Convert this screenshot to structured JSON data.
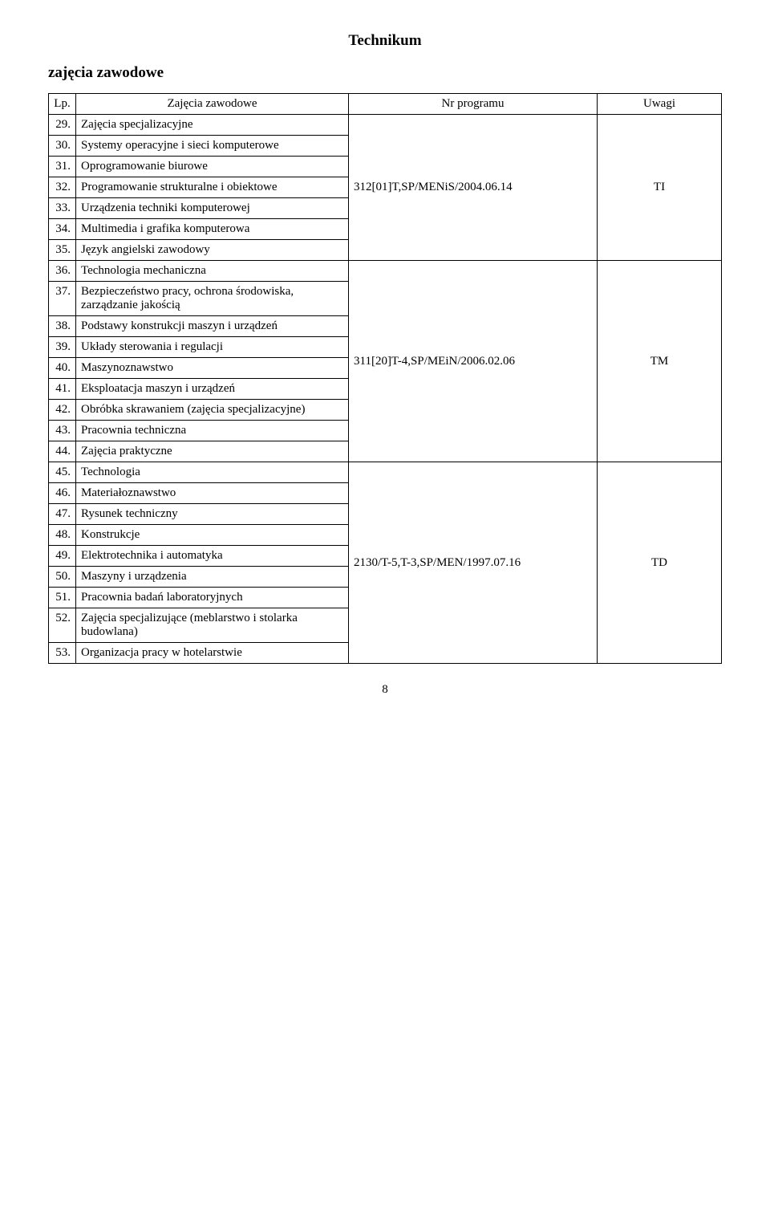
{
  "title": "Technikum",
  "subtitle": "zajęcia zawodowe",
  "headers": {
    "lp": "Lp.",
    "name": "Zajęcia zawodowe",
    "program": "Nr programu",
    "uwagi": "Uwagi"
  },
  "groups": [
    {
      "program": "312[01]T,SP/MENiS/2004.06.14",
      "uwagi": "TI",
      "rows": [
        {
          "lp": "29.",
          "name": "Zajęcia specjalizacyjne"
        },
        {
          "lp": "30.",
          "name": "Systemy operacyjne i sieci komputerowe"
        },
        {
          "lp": "31.",
          "name": "Oprogramowanie biurowe"
        },
        {
          "lp": "32.",
          "name": "Programowanie strukturalne i obiektowe"
        },
        {
          "lp": "33.",
          "name": "Urządzenia techniki komputerowej"
        },
        {
          "lp": "34.",
          "name": "Multimedia i grafika komputerowa"
        },
        {
          "lp": "35.",
          "name": "Język angielski zawodowy"
        }
      ]
    },
    {
      "program": "311[20]T-4,SP/MEiN/2006.02.06",
      "uwagi": "TM",
      "rows": [
        {
          "lp": "36.",
          "name": "Technologia mechaniczna"
        },
        {
          "lp": "37.",
          "name": "Bezpieczeństwo pracy, ochrona środowiska, zarządzanie jakością"
        },
        {
          "lp": "38.",
          "name": "Podstawy konstrukcji maszyn i urządzeń"
        },
        {
          "lp": "39.",
          "name": "Układy sterowania i regulacji"
        },
        {
          "lp": "40.",
          "name": "Maszynoznawstwo"
        },
        {
          "lp": "41.",
          "name": "Eksploatacja maszyn i urządzeń"
        },
        {
          "lp": "42.",
          "name": "Obróbka skrawaniem (zajęcia specjalizacyjne)"
        },
        {
          "lp": "43.",
          "name": "Pracownia techniczna"
        },
        {
          "lp": "44.",
          "name": "Zajęcia praktyczne"
        }
      ]
    },
    {
      "program": "2130/T-5,T-3,SP/MEN/1997.07.16",
      "uwagi": "TD",
      "rows": [
        {
          "lp": "45.",
          "name": "Technologia"
        },
        {
          "lp": "46.",
          "name": "Materiałoznawstwo"
        },
        {
          "lp": "47.",
          "name": "Rysunek techniczny"
        },
        {
          "lp": "48.",
          "name": "Konstrukcje"
        },
        {
          "lp": "49.",
          "name": "Elektrotechnika i automatyka"
        },
        {
          "lp": "50.",
          "name": "Maszyny i urządzenia"
        },
        {
          "lp": "51.",
          "name": "Pracownia badań laboratoryjnych"
        },
        {
          "lp": "52.",
          "name": "Zajęcia specjalizujące (meblarstwo i stolarka budowlana)"
        },
        {
          "lp": "53.",
          "name": "Organizacja pracy w hotelarstwie"
        }
      ]
    }
  ],
  "pageNumber": "8"
}
